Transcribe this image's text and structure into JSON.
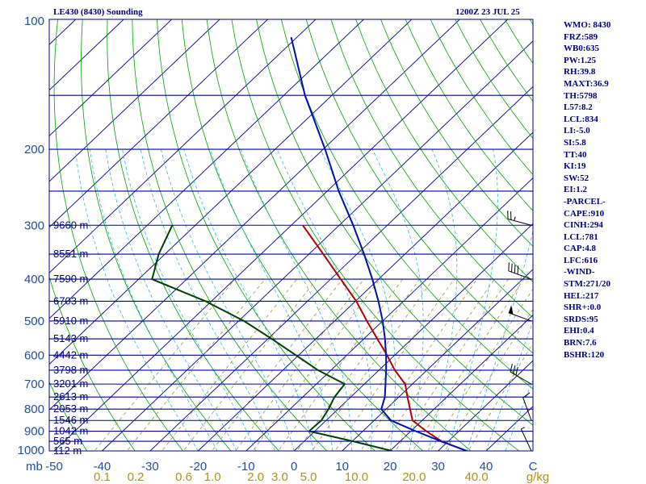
{
  "header": {
    "station": "LE430 (8430) Sounding",
    "time": "1200Z 23 JUL 25"
  },
  "indices": [
    "WMO: 8430",
    "FRZ:589",
    "WB0:635",
    "PW:1.25",
    "RH:39.8",
    "MAXT:36.9",
    "TH:5798",
    "L57:8.2",
    "LCL:834",
    "LI:-5.0",
    "SI:5.8",
    "TT:40",
    "KI:19",
    "SW:52",
    "EI:1.2",
    "-PARCEL-",
    "CAPE:910",
    "CINH:294",
    "LCL:781",
    "CAP:4.8",
    "LFC:616",
    "-WIND-",
    "STM:271/20",
    "HEL:217",
    "SHR+:0.0",
    "SRDS:95",
    "EHI:0.4",
    "BRN:7.6",
    "BSHR:120"
  ],
  "chart_data": {
    "type": "line",
    "title": "LE430 (8430) Sounding",
    "subtitle": "1200Z 23 JUL 25",
    "y_scale": "log (pressure)",
    "ylim": [
      1000,
      100
    ],
    "xlim": [
      -50,
      50
    ],
    "pressure_labels": [
      {
        "p": 100,
        "text": "100"
      },
      {
        "p": 200,
        "text": "200"
      },
      {
        "p": 300,
        "text": "300"
      },
      {
        "p": 400,
        "text": "400"
      },
      {
        "p": 500,
        "text": "500"
      },
      {
        "p": 600,
        "text": "600"
      },
      {
        "p": 700,
        "text": "700"
      },
      {
        "p": 800,
        "text": "800"
      },
      {
        "p": 900,
        "text": "900"
      },
      {
        "p": 1000,
        "text": "1000"
      }
    ],
    "pressure_unit": "mb",
    "temp_ticks": [
      {
        "t": -50,
        "text": "-50"
      },
      {
        "t": -40,
        "text": "-40"
      },
      {
        "t": -30,
        "text": "-30"
      },
      {
        "t": -20,
        "text": "-20"
      },
      {
        "t": -10,
        "text": "-10"
      },
      {
        "t": 0,
        "text": "0"
      },
      {
        "t": 10,
        "text": "10"
      },
      {
        "t": 20,
        "text": "20"
      },
      {
        "t": 30,
        "text": "30"
      },
      {
        "t": 40,
        "text": "40"
      }
    ],
    "temp_unit": "C",
    "mixing_ratio_labels": [
      {
        "t": -40,
        "text": "0.1"
      },
      {
        "t": -33,
        "text": "0.2"
      },
      {
        "t": -23,
        "text": "0.6"
      },
      {
        "t": -17,
        "text": "1.0"
      },
      {
        "t": -8,
        "text": "2.0"
      },
      {
        "t": -3,
        "text": "3.0"
      },
      {
        "t": 3,
        "text": "5.0"
      },
      {
        "t": 13,
        "text": "10.0"
      },
      {
        "t": 25,
        "text": "20.0"
      },
      {
        "t": 38,
        "text": "40.0"
      }
    ],
    "mixing_ratio_unit": "g/kg",
    "height_labels": [
      {
        "p": 1000,
        "text": "112 m"
      },
      {
        "p": 950,
        "text": "565 m"
      },
      {
        "p": 900,
        "text": "1042 m"
      },
      {
        "p": 850,
        "text": "1546 m"
      },
      {
        "p": 800,
        "text": "2053 m"
      },
      {
        "p": 750,
        "text": "2613 m"
      },
      {
        "p": 700,
        "text": "3201 m"
      },
      {
        "p": 650,
        "text": "3798 m"
      },
      {
        "p": 600,
        "text": "4442 m"
      },
      {
        "p": 550,
        "text": "5143 m"
      },
      {
        "p": 500,
        "text": "5910 m"
      },
      {
        "p": 450,
        "text": "6703 m"
      },
      {
        "p": 400,
        "text": "7590 m"
      },
      {
        "p": 350,
        "text": "8551 m"
      },
      {
        "p": 300,
        "text": "9660 m"
      }
    ],
    "series": [
      {
        "name": "Temperature",
        "color": "#b00000",
        "points": [
          {
            "p": 1000,
            "t": 36.0
          },
          {
            "p": 950,
            "t": 28.6
          },
          {
            "p": 900,
            "t": 23.2
          },
          {
            "p": 850,
            "t": 18.0
          },
          {
            "p": 800,
            "t": 15.0
          },
          {
            "p": 750,
            "t": 11.8
          },
          {
            "p": 700,
            "t": 8.5
          },
          {
            "p": 650,
            "t": 3.3
          },
          {
            "p": 600,
            "t": -1.6
          },
          {
            "p": 550,
            "t": -7.2
          },
          {
            "p": 500,
            "t": -13.3
          },
          {
            "p": 450,
            "t": -19.8
          },
          {
            "p": 400,
            "t": -27.9
          },
          {
            "p": 350,
            "t": -37.0
          },
          {
            "p": 300,
            "t": -47.6
          }
        ]
      },
      {
        "name": "Dewpoint",
        "color": "#004000",
        "points": [
          {
            "p": 1000,
            "t": 20.4
          },
          {
            "p": 950,
            "t": 10.2
          },
          {
            "p": 900,
            "t": -1.2
          },
          {
            "p": 850,
            "t": -1.0
          },
          {
            "p": 800,
            "t": -2.0
          },
          {
            "p": 750,
            "t": -3.4
          },
          {
            "p": 700,
            "t": -4.1
          },
          {
            "p": 650,
            "t": -12.7
          },
          {
            "p": 600,
            "t": -20.6
          },
          {
            "p": 550,
            "t": -29.2
          },
          {
            "p": 500,
            "t": -38.9
          },
          {
            "p": 450,
            "t": -51.2
          },
          {
            "p": 400,
            "t": -67.2
          },
          {
            "p": 350,
            "t": -71.3
          },
          {
            "p": 300,
            "t": -74.8
          }
        ]
      },
      {
        "name": "Parcel",
        "color": "#0010b0",
        "points": [
          {
            "p": 1000,
            "t": 36.0
          },
          {
            "p": 950,
            "t": 28.5
          },
          {
            "p": 900,
            "t": 21.0
          },
          {
            "p": 850,
            "t": 13.5
          },
          {
            "p": 800,
            "t": 9.0
          },
          {
            "p": 750,
            "t": 7.1
          },
          {
            "p": 700,
            "t": 4.4
          },
          {
            "p": 650,
            "t": 1.5
          },
          {
            "p": 600,
            "t": -1.8
          },
          {
            "p": 550,
            "t": -5.6
          },
          {
            "p": 500,
            "t": -10.0
          },
          {
            "p": 450,
            "t": -15.2
          },
          {
            "p": 400,
            "t": -21.3
          },
          {
            "p": 350,
            "t": -28.5
          },
          {
            "p": 300,
            "t": -37.1
          },
          {
            "p": 250,
            "t": -47.6
          },
          {
            "p": 200,
            "t": -59.6
          },
          {
            "p": 150,
            "t": -75.6
          },
          {
            "p": 110,
            "t": -91.2
          }
        ]
      }
    ],
    "wind_barbs": [
      {
        "p": 1000,
        "dir": 335,
        "spd": 5
      },
      {
        "p": 850,
        "dir": 340,
        "spd": 10
      },
      {
        "p": 700,
        "dir": 300,
        "spd": 30
      },
      {
        "p": 500,
        "dir": 290,
        "spd": 50
      },
      {
        "p": 400,
        "dir": 290,
        "spd": 40
      },
      {
        "p": 300,
        "dir": 285,
        "spd": 25
      }
    ],
    "colors": {
      "frame": "#000080",
      "isobar": "#0000a0",
      "isotherm": "#000080",
      "dry_adiabat": "#00a000",
      "moist_adiabat": "#30b8e0",
      "mixing_ratio": "#9c9430"
    },
    "grid": true
  }
}
